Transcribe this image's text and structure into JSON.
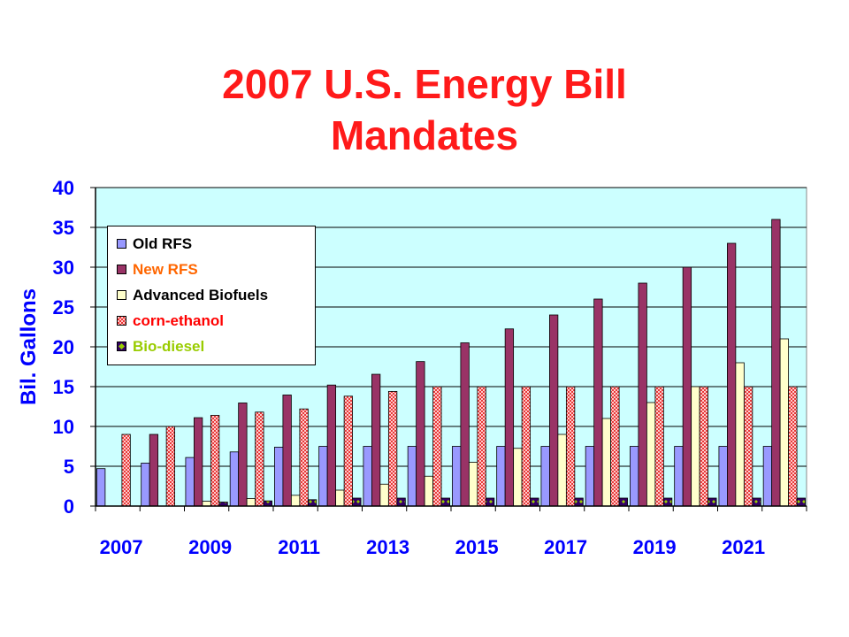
{
  "slide": {
    "title_line1": "2007 U.S. Energy Bill",
    "title_line2": "Mandates"
  },
  "chart_data": {
    "type": "bar",
    "title": "2007 U.S. Energy Bill Mandates",
    "ylabel": "Bil. Gallons",
    "xlabel": "",
    "ylim": [
      0,
      40
    ],
    "yticks": [
      0,
      5,
      10,
      15,
      20,
      25,
      30,
      35,
      40
    ],
    "categories": [
      "2007",
      "2008",
      "2009",
      "2010",
      "2011",
      "2012",
      "2013",
      "2014",
      "2015",
      "2016",
      "2017",
      "2018",
      "2019",
      "2020",
      "2021",
      "2022"
    ],
    "xtick_labels": [
      "2007",
      "2009",
      "2011",
      "2013",
      "2015",
      "2017",
      "2019",
      "2021"
    ],
    "grid": true,
    "legend_position": "top-left",
    "plot_background": "#ccffff",
    "series": [
      {
        "name": "Old RFS",
        "color": "#9999ff",
        "pattern": "solid",
        "label_color": "#000000",
        "values": [
          4.7,
          5.4,
          6.1,
          6.8,
          7.4,
          7.5,
          7.5,
          7.5,
          7.5,
          7.5,
          7.5,
          7.5,
          7.5,
          7.5,
          7.5,
          7.5
        ]
      },
      {
        "name": "New RFS",
        "color": "#993366",
        "pattern": "solid",
        "label_color": "#ff6600",
        "values": [
          null,
          9.0,
          11.1,
          12.95,
          13.95,
          15.2,
          16.55,
          18.15,
          20.5,
          22.25,
          24.0,
          26.0,
          28.0,
          30.0,
          33.0,
          36.0
        ]
      },
      {
        "name": "Advanced Biofuels",
        "color": "#ffffcc",
        "pattern": "solid",
        "label_color": "#000000",
        "values": [
          null,
          null,
          0.6,
          0.95,
          1.35,
          2.0,
          2.75,
          3.75,
          5.5,
          7.25,
          9.0,
          11.0,
          13.0,
          15.0,
          18.0,
          21.0
        ]
      },
      {
        "name": "corn-ethanol",
        "color": "#ff9999",
        "pattern": "checker",
        "label_color": "#ff0000",
        "values": [
          9.0,
          10.0,
          11.4,
          11.8,
          12.2,
          13.8,
          14.4,
          15.0,
          15.0,
          15.0,
          15.0,
          15.0,
          15.0,
          15.0,
          15.0,
          15.0
        ]
      },
      {
        "name": "Bio-diesel",
        "color": "#330066",
        "pattern": "diamond",
        "label_color": "#99cc00",
        "values": [
          null,
          null,
          0.5,
          0.65,
          0.8,
          1.0,
          1.0,
          1.0,
          1.0,
          1.0,
          1.0,
          1.0,
          1.0,
          1.0,
          1.0,
          1.0
        ]
      }
    ]
  }
}
